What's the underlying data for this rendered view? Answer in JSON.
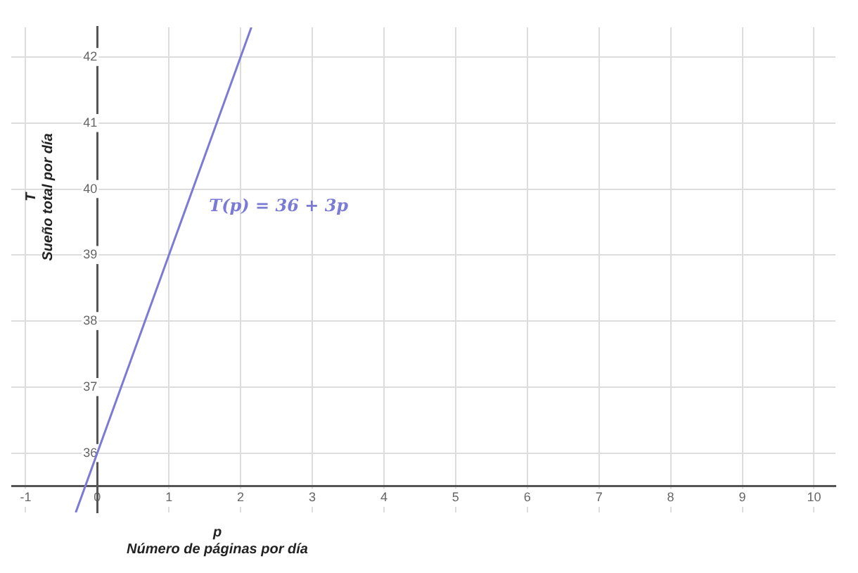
{
  "chart_data": {
    "type": "line",
    "xlabel": "p\nNúmero de páginas por día",
    "ylabel": "T\nSueño total por día",
    "x": [
      -0.3,
      2.15
    ],
    "series": [
      {
        "color": "#7b7bd6",
        "values": [
          35.1,
          42.45
        ]
      }
    ],
    "xlim": [
      -1.2,
      10.3
    ],
    "ylim": [
      35.1,
      42.45
    ],
    "xticks": [
      -1,
      0,
      1,
      2,
      3,
      4,
      5,
      6,
      7,
      8,
      9,
      10
    ],
    "yticks": [
      36,
      37,
      38,
      39,
      40,
      41,
      42
    ],
    "annotations": [
      "T(p) = 36 + 3p"
    ],
    "grid": true,
    "legend": false,
    "marker": "none",
    "line_style": "solid"
  }
}
